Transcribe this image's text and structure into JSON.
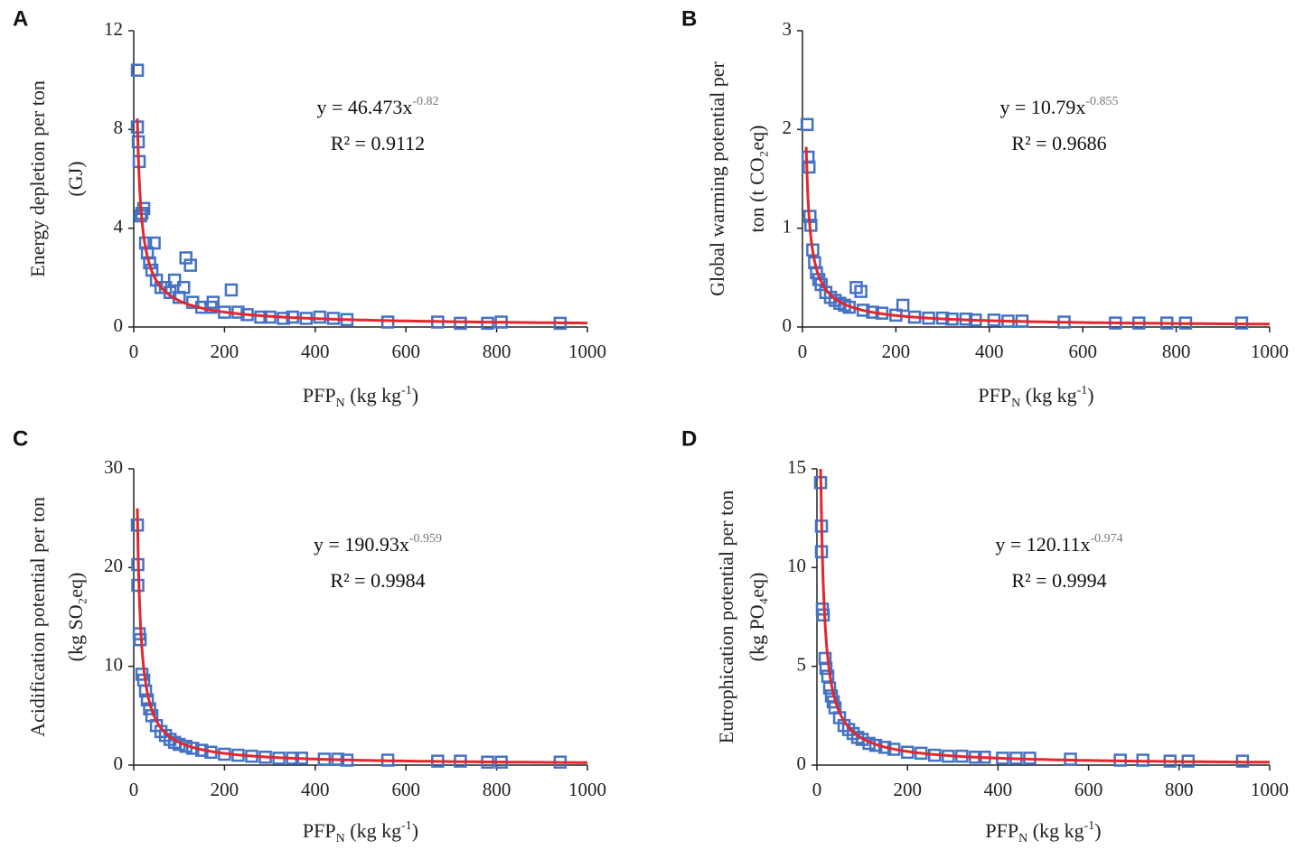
{
  "colors": {
    "points": "#4472c4",
    "fit": "#e5262d",
    "axis": "#222222"
  },
  "charts": [
    {
      "panel": "A",
      "type": "scatter",
      "ylabel_lines": [
        "Energy depletion per ton",
        "(GJ)"
      ],
      "xlabel": {
        "main": "PFP",
        "sub": "N",
        "rest": " (kg kg",
        "sup": "-1",
        "end": ")"
      },
      "equation": {
        "prefix": "y = 46.473x",
        "exponent": "-0.82"
      },
      "r2": "R² = 0.9112",
      "xlim": [
        0,
        1000
      ],
      "ylim": [
        0,
        12
      ],
      "xticks": [
        "0",
        "200",
        "400",
        "600",
        "800",
        "1000"
      ],
      "yticks": [
        "0",
        "4",
        "8",
        "12"
      ],
      "fit": {
        "a": 46.473,
        "b": -0.82
      },
      "points": [
        [
          8,
          10.4
        ],
        [
          8,
          8.1
        ],
        [
          10,
          7.5
        ],
        [
          12,
          6.7
        ],
        [
          15,
          4.5
        ],
        [
          18,
          4.6
        ],
        [
          22,
          4.8
        ],
        [
          26,
          3.4
        ],
        [
          30,
          3.0
        ],
        [
          35,
          2.6
        ],
        [
          40,
          2.3
        ],
        [
          45,
          3.4
        ],
        [
          50,
          1.9
        ],
        [
          60,
          1.6
        ],
        [
          70,
          1.6
        ],
        [
          80,
          1.4
        ],
        [
          90,
          1.9
        ],
        [
          100,
          1.2
        ],
        [
          110,
          1.6
        ],
        [
          115,
          2.8
        ],
        [
          125,
          2.5
        ],
        [
          130,
          1.0
        ],
        [
          150,
          0.8
        ],
        [
          170,
          0.8
        ],
        [
          175,
          1.0
        ],
        [
          200,
          0.6
        ],
        [
          215,
          1.5
        ],
        [
          230,
          0.6
        ],
        [
          250,
          0.5
        ],
        [
          280,
          0.4
        ],
        [
          300,
          0.4
        ],
        [
          330,
          0.35
        ],
        [
          350,
          0.4
        ],
        [
          380,
          0.35
        ],
        [
          410,
          0.4
        ],
        [
          440,
          0.35
        ],
        [
          470,
          0.3
        ],
        [
          560,
          0.2
        ],
        [
          670,
          0.2
        ],
        [
          720,
          0.15
        ],
        [
          780,
          0.15
        ],
        [
          810,
          0.2
        ],
        [
          940,
          0.15
        ]
      ]
    },
    {
      "panel": "B",
      "type": "scatter",
      "ylabel_lines": [
        "Global warming potential per",
        "ton (t CO₂eq)"
      ],
      "xlabel": {
        "main": "PFP",
        "sub": "N",
        "rest": " (kg kg",
        "sup": "-1",
        "end": ")"
      },
      "equation": {
        "prefix": "y = 10.79x",
        "exponent": "-0.855"
      },
      "r2": "R² = 0.9686",
      "xlim": [
        0,
        1000
      ],
      "ylim": [
        0,
        3
      ],
      "xticks": [
        "0",
        "200",
        "400",
        "600",
        "800",
        "1000"
      ],
      "yticks": [
        "0",
        "1",
        "2",
        "3"
      ],
      "fit": {
        "a": 10.79,
        "b": -0.855
      },
      "points": [
        [
          10,
          2.05
        ],
        [
          12,
          1.72
        ],
        [
          14,
          1.62
        ],
        [
          16,
          1.12
        ],
        [
          18,
          1.03
        ],
        [
          22,
          0.78
        ],
        [
          26,
          0.65
        ],
        [
          30,
          0.55
        ],
        [
          35,
          0.48
        ],
        [
          40,
          0.43
        ],
        [
          50,
          0.35
        ],
        [
          60,
          0.3
        ],
        [
          70,
          0.27
        ],
        [
          80,
          0.24
        ],
        [
          90,
          0.22
        ],
        [
          100,
          0.2
        ],
        [
          115,
          0.4
        ],
        [
          125,
          0.36
        ],
        [
          130,
          0.17
        ],
        [
          150,
          0.15
        ],
        [
          170,
          0.14
        ],
        [
          200,
          0.12
        ],
        [
          215,
          0.22
        ],
        [
          240,
          0.1
        ],
        [
          270,
          0.09
        ],
        [
          300,
          0.09
        ],
        [
          320,
          0.08
        ],
        [
          350,
          0.08
        ],
        [
          370,
          0.07
        ],
        [
          410,
          0.07
        ],
        [
          440,
          0.06
        ],
        [
          470,
          0.06
        ],
        [
          560,
          0.05
        ],
        [
          670,
          0.04
        ],
        [
          720,
          0.04
        ],
        [
          780,
          0.04
        ],
        [
          820,
          0.04
        ],
        [
          940,
          0.04
        ]
      ]
    },
    {
      "panel": "C",
      "type": "scatter",
      "ylabel_lines": [
        "Acidification potential per ton",
        "(kg SO₂eq)"
      ],
      "xlabel": {
        "main": "PFP",
        "sub": "N",
        "rest": " (kg kg",
        "sup": "-1",
        "end": ")"
      },
      "equation": {
        "prefix": "y = 190.93x",
        "exponent": "-0.959"
      },
      "r2": "R² = 0.9984",
      "xlim": [
        0,
        1000
      ],
      "ylim": [
        0,
        30
      ],
      "xticks": [
        "0",
        "200",
        "400",
        "600",
        "800",
        "1000"
      ],
      "yticks": [
        "0",
        "10",
        "20",
        "30"
      ],
      "fit": {
        "a": 190.93,
        "b": -0.959
      },
      "points": [
        [
          8,
          24.3
        ],
        [
          9,
          20.3
        ],
        [
          9,
          18.2
        ],
        [
          12,
          13.3
        ],
        [
          14,
          12.7
        ],
        [
          18,
          9.2
        ],
        [
          22,
          8.6
        ],
        [
          26,
          7.5
        ],
        [
          30,
          6.6
        ],
        [
          35,
          5.7
        ],
        [
          40,
          5.0
        ],
        [
          50,
          4.0
        ],
        [
          60,
          3.4
        ],
        [
          70,
          3.0
        ],
        [
          80,
          2.6
        ],
        [
          90,
          2.3
        ],
        [
          100,
          2.1
        ],
        [
          115,
          1.9
        ],
        [
          130,
          1.7
        ],
        [
          150,
          1.5
        ],
        [
          170,
          1.3
        ],
        [
          200,
          1.1
        ],
        [
          230,
          1.0
        ],
        [
          260,
          0.9
        ],
        [
          290,
          0.8
        ],
        [
          320,
          0.7
        ],
        [
          350,
          0.7
        ],
        [
          370,
          0.7
        ],
        [
          420,
          0.6
        ],
        [
          450,
          0.6
        ],
        [
          470,
          0.5
        ],
        [
          560,
          0.5
        ],
        [
          670,
          0.4
        ],
        [
          720,
          0.4
        ],
        [
          780,
          0.3
        ],
        [
          810,
          0.3
        ],
        [
          940,
          0.3
        ]
      ]
    },
    {
      "panel": "D",
      "type": "scatter",
      "ylabel_lines": [
        "Eutrophication potential per ton",
        "(kg PO₄eq)"
      ],
      "xlabel": {
        "main": "PFP",
        "sub": "N",
        "rest": " (kg kg",
        "sup": "-1",
        "end": ")"
      },
      "equation": {
        "prefix": "y = 120.11x",
        "exponent": "-0.974"
      },
      "r2": "R² = 0.9994",
      "xlim": [
        0,
        1000
      ],
      "ylim": [
        0,
        15
      ],
      "xticks": [
        "0",
        "200",
        "400",
        "600",
        "800",
        "1000"
      ],
      "yticks": [
        "0",
        "5",
        "10",
        "15"
      ],
      "fit": {
        "a": 120.11,
        "b": -0.974
      },
      "points": [
        [
          8,
          14.3
        ],
        [
          10,
          12.1
        ],
        [
          10,
          10.8
        ],
        [
          12,
          7.9
        ],
        [
          14,
          7.6
        ],
        [
          18,
          5.4
        ],
        [
          20,
          4.9
        ],
        [
          24,
          4.5
        ],
        [
          28,
          3.9
        ],
        [
          32,
          3.5
        ],
        [
          36,
          3.2
        ],
        [
          40,
          2.9
        ],
        [
          50,
          2.4
        ],
        [
          60,
          2.0
        ],
        [
          70,
          1.8
        ],
        [
          80,
          1.6
        ],
        [
          90,
          1.4
        ],
        [
          100,
          1.3
        ],
        [
          115,
          1.1
        ],
        [
          130,
          1.0
        ],
        [
          150,
          0.9
        ],
        [
          170,
          0.8
        ],
        [
          200,
          0.65
        ],
        [
          230,
          0.6
        ],
        [
          260,
          0.5
        ],
        [
          290,
          0.45
        ],
        [
          320,
          0.45
        ],
        [
          350,
          0.4
        ],
        [
          370,
          0.4
        ],
        [
          410,
          0.35
        ],
        [
          440,
          0.35
        ],
        [
          470,
          0.35
        ],
        [
          560,
          0.3
        ],
        [
          670,
          0.25
        ],
        [
          720,
          0.25
        ],
        [
          780,
          0.2
        ],
        [
          820,
          0.2
        ],
        [
          940,
          0.2
        ]
      ]
    }
  ]
}
